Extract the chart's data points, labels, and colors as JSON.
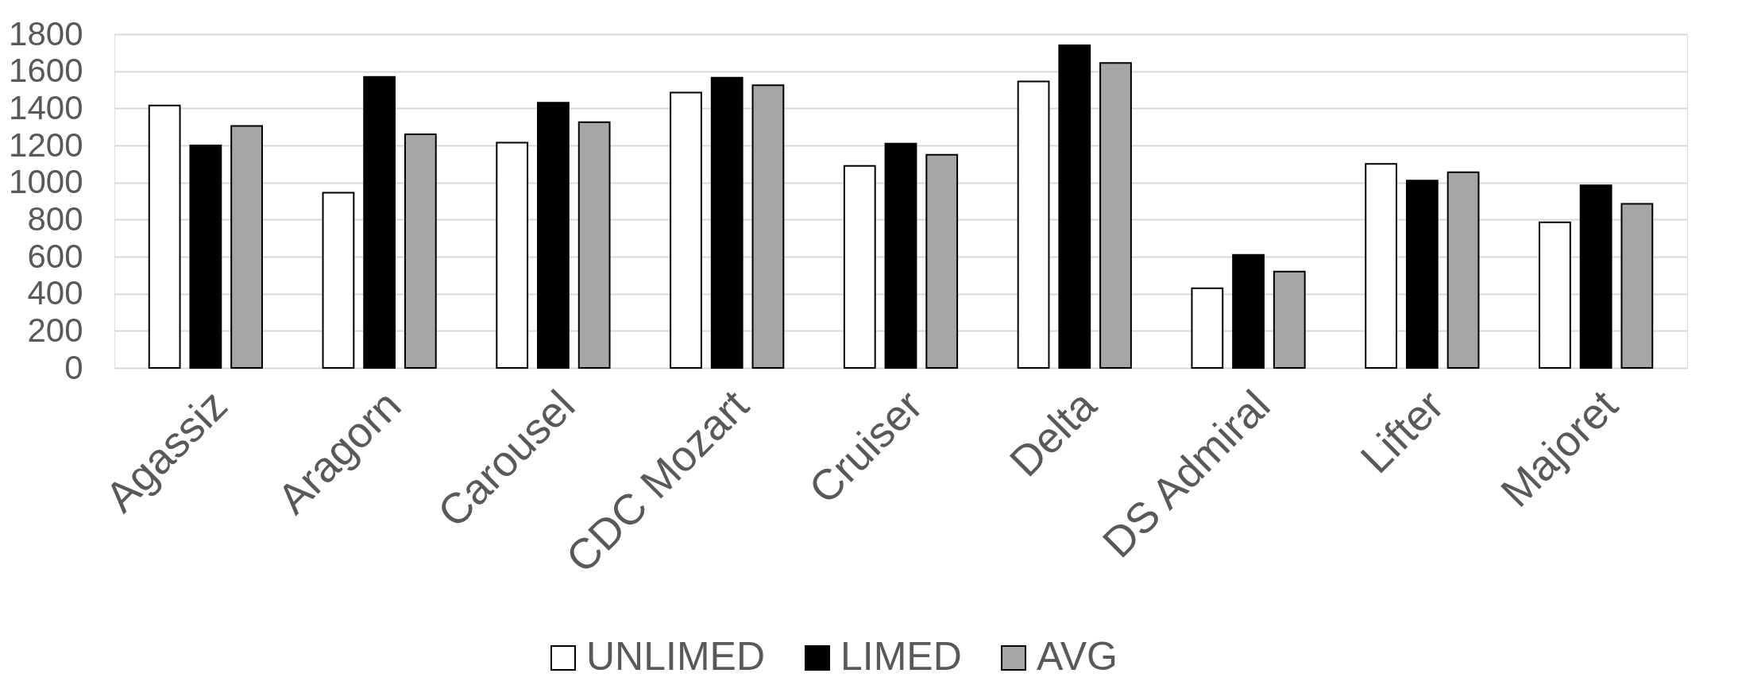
{
  "chart_data": {
    "type": "bar",
    "categories": [
      "Agassiz",
      "Aragorn",
      "Carousel",
      "CDC Mozart",
      "Cruiser",
      "Delta",
      "DS Admiral",
      "Lifter",
      "Majoret"
    ],
    "series": [
      {
        "name": "UNLIMED",
        "color": "#ffffff",
        "values": [
          1415,
          945,
          1215,
          1485,
          1090,
          1545,
          430,
          1100,
          785
        ]
      },
      {
        "name": "LIMED",
        "color": "#000000",
        "values": [
          1200,
          1570,
          1430,
          1565,
          1210,
          1740,
          610,
          1010,
          985
        ]
      },
      {
        "name": "AVG",
        "color": "#a6a6a6",
        "values": [
          1305,
          1260,
          1325,
          1525,
          1150,
          1645,
          520,
          1055,
          885
        ]
      }
    ],
    "ylim": [
      0,
      1800
    ],
    "yticks": [
      0,
      200,
      400,
      600,
      800,
      1000,
      1200,
      1400,
      1600,
      1800
    ],
    "grid": "y",
    "legend": "bottom"
  }
}
